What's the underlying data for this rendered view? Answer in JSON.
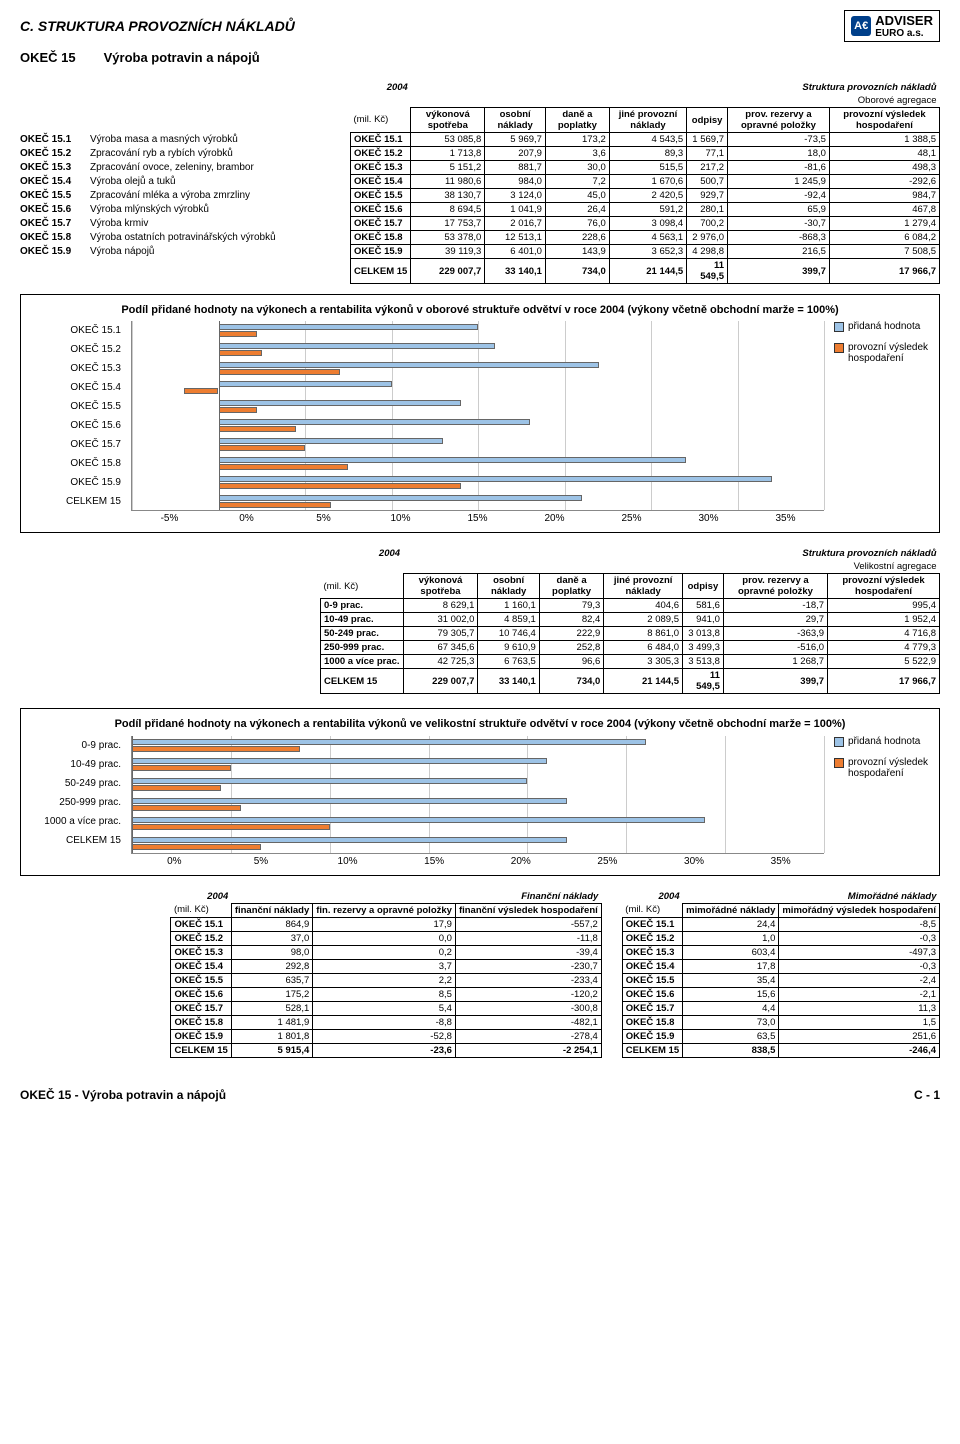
{
  "page": {
    "section_letter_title": "C. STRUKTURA PROVOZNÍCH NÁKLADŮ",
    "logo_text1": "ADVISER",
    "logo_text2": "EURO a.s.",
    "subtitle_code": "OKEČ 15",
    "subtitle_text": "Výroba potravin a nápojů",
    "footer_left": "OKEČ 15 - Výroba potravin a nápojů",
    "footer_right": "C - 1"
  },
  "activities": [
    {
      "code": "OKEČ 15.1",
      "desc": "Výroba masa a masných výrobků"
    },
    {
      "code": "OKEČ 15.2",
      "desc": "Zpracování ryb a rybích výrobků"
    },
    {
      "code": "OKEČ 15.3",
      "desc": "Zpracování ovoce, zeleniny, brambor"
    },
    {
      "code": "OKEČ 15.4",
      "desc": "Výroba olejů a tuků"
    },
    {
      "code": "OKEČ 15.5",
      "desc": "Zpracování mléka a výroba zmrzliny"
    },
    {
      "code": "OKEČ 15.6",
      "desc": "Výroba mlýnských výrobků"
    },
    {
      "code": "OKEČ 15.7",
      "desc": "Výroba krmiv"
    },
    {
      "code": "OKEČ 15.8",
      "desc": "Výroba ostatních potravinářských výrobků"
    },
    {
      "code": "OKEČ 15.9",
      "desc": "Výroba nápojů"
    }
  ],
  "table1": {
    "year": "2004",
    "title": "Struktura provozních nákladů",
    "subtitle": "Oborové agregace",
    "unit": "(mil. Kč)",
    "headers": [
      "výkonová spotřeba",
      "osobní náklady",
      "daně a poplatky",
      "jiné provozní náklady",
      "odpisy",
      "prov. rezervy a opravné položky",
      "provozní výsledek hospodaření"
    ],
    "rows": [
      {
        "label": "OKEČ 15.1",
        "v": [
          "53 085,8",
          "5 969,7",
          "173,2",
          "4 543,5",
          "1 569,7",
          "-73,5",
          "1 388,5"
        ]
      },
      {
        "label": "OKEČ 15.2",
        "v": [
          "1 713,8",
          "207,9",
          "3,6",
          "89,3",
          "77,1",
          "18,0",
          "48,1"
        ]
      },
      {
        "label": "OKEČ 15.3",
        "v": [
          "5 151,2",
          "881,7",
          "30,0",
          "515,5",
          "217,2",
          "-81,6",
          "498,3"
        ]
      },
      {
        "label": "OKEČ 15.4",
        "v": [
          "11 980,6",
          "984,0",
          "7,2",
          "1 670,6",
          "500,7",
          "1 245,9",
          "-292,6"
        ]
      },
      {
        "label": "OKEČ 15.5",
        "v": [
          "38 130,7",
          "3 124,0",
          "45,0",
          "2 420,5",
          "929,7",
          "-92,4",
          "984,7"
        ]
      },
      {
        "label": "OKEČ 15.6",
        "v": [
          "8 694,5",
          "1 041,9",
          "26,4",
          "591,2",
          "280,1",
          "65,9",
          "467,8"
        ]
      },
      {
        "label": "OKEČ 15.7",
        "v": [
          "17 753,7",
          "2 016,7",
          "76,0",
          "3 098,4",
          "700,2",
          "-30,7",
          "1 279,4"
        ]
      },
      {
        "label": "OKEČ 15.8",
        "v": [
          "53 378,0",
          "12 513,1",
          "228,6",
          "4 563,1",
          "2 976,0",
          "-868,3",
          "6 084,2"
        ]
      },
      {
        "label": "OKEČ 15.9",
        "v": [
          "39 119,3",
          "6 401,0",
          "143,9",
          "3 652,3",
          "4 298,8",
          "216,5",
          "7 508,5"
        ]
      },
      {
        "label": "CELKEM 15",
        "v": [
          "229 007,7",
          "33 140,1",
          "734,0",
          "21 144,5",
          "11 549,5",
          "399,7",
          "17 966,7"
        ],
        "total": true
      }
    ]
  },
  "chart1": {
    "title": "Podíl přidané hodnoty na výkonech a rentabilita výkonů v oborové struktuře odvětví v roce 2004\n(výkony včetně obchodní marže = 100%)",
    "type": "bar-horizontal-grouped",
    "x_min": -5,
    "x_max": 35,
    "x_step": 5,
    "x_ticks": [
      "-5%",
      "0%",
      "5%",
      "10%",
      "15%",
      "20%",
      "25%",
      "30%",
      "35%"
    ],
    "colors": {
      "ph": "#9dc3e6",
      "pvh": "#ed7d31",
      "border": "#666"
    },
    "legend": [
      {
        "label": "přidaná hodnota",
        "swatch": "#9dc3e6"
      },
      {
        "label": "provozní výsledek hospodaření",
        "swatch": "#ed7d31"
      }
    ],
    "categories": [
      "OKEČ 15.1",
      "OKEČ 15.2",
      "OKEČ 15.3",
      "OKEČ 15.4",
      "OKEČ 15.5",
      "OKEČ 15.6",
      "OKEČ 15.7",
      "OKEČ 15.8",
      "OKEČ 15.9",
      "CELKEM 15"
    ],
    "series": {
      "ph": [
        15,
        16,
        22,
        10,
        14,
        18,
        13,
        27,
        32,
        21
      ],
      "pvh": [
        2.2,
        2.5,
        7,
        -2,
        2.2,
        4.5,
        5,
        7.5,
        14,
        6.5
      ]
    }
  },
  "table2": {
    "year": "2004",
    "title": "Struktura provozních nákladů",
    "subtitle": "Velikostní agregace",
    "unit": "(mil. Kč)",
    "headers": [
      "výkonová spotřeba",
      "osobní náklady",
      "daně a poplatky",
      "jiné provozní náklady",
      "odpisy",
      "prov. rezervy a opravné položky",
      "provozní výsledek hospodaření"
    ],
    "rows": [
      {
        "label": "0-9 prac.",
        "v": [
          "8 629,1",
          "1 160,1",
          "79,3",
          "404,6",
          "581,6",
          "-18,7",
          "995,4"
        ]
      },
      {
        "label": "10-49 prac.",
        "v": [
          "31 002,0",
          "4 859,1",
          "82,4",
          "2 089,5",
          "941,0",
          "29,7",
          "1 952,4"
        ]
      },
      {
        "label": "50-249 prac.",
        "v": [
          "79 305,7",
          "10 746,4",
          "222,9",
          "8 861,0",
          "3 013,8",
          "-363,9",
          "4 716,8"
        ]
      },
      {
        "label": "250-999 prac.",
        "v": [
          "67 345,6",
          "9 610,9",
          "252,8",
          "6 484,0",
          "3 499,3",
          "-516,0",
          "4 779,3"
        ]
      },
      {
        "label": "1000 a více prac.",
        "v": [
          "42 725,3",
          "6 763,5",
          "96,6",
          "3 305,3",
          "3 513,8",
          "1 268,7",
          "5 522,9"
        ]
      },
      {
        "label": "CELKEM 15",
        "v": [
          "229 007,7",
          "33 140,1",
          "734,0",
          "21 144,5",
          "11 549,5",
          "399,7",
          "17 966,7"
        ],
        "total": true
      }
    ]
  },
  "chart2": {
    "title": "Podíl přidané hodnoty na výkonech a rentabilita výkonů ve velikostní struktuře odvětví v roce 2004\n(výkony včetně obchodní marže = 100%)",
    "type": "bar-horizontal-grouped",
    "x_min": 0,
    "x_max": 35,
    "x_step": 5,
    "x_ticks": [
      "0%",
      "5%",
      "10%",
      "15%",
      "20%",
      "25%",
      "30%",
      "35%"
    ],
    "colors": {
      "ph": "#9dc3e6",
      "pvh": "#ed7d31",
      "border": "#666"
    },
    "legend": [
      {
        "label": "přidaná hodnota",
        "swatch": "#9dc3e6"
      },
      {
        "label": "provozní výsledek hospodaření",
        "swatch": "#ed7d31"
      }
    ],
    "categories": [
      "0-9 prac.",
      "10-49 prac.",
      "50-249 prac.",
      "250-999 prac.",
      "1000 a více prac.",
      "CELKEM 15"
    ],
    "series": {
      "ph": [
        26,
        21,
        20,
        22,
        29,
        22
      ],
      "pvh": [
        8.5,
        5,
        4.5,
        5.5,
        10,
        6.5
      ]
    }
  },
  "table3": {
    "year": "2004",
    "title": "Finanční náklady",
    "unit": "(mil. Kč)",
    "headers": [
      "finanční náklady",
      "fin. rezervy a opravné položky",
      "finanční výsledek hospodaření"
    ],
    "rows": [
      {
        "label": "OKEČ 15.1",
        "v": [
          "864,9",
          "17,9",
          "-557,2"
        ]
      },
      {
        "label": "OKEČ 15.2",
        "v": [
          "37,0",
          "0,0",
          "-11,8"
        ]
      },
      {
        "label": "OKEČ 15.3",
        "v": [
          "98,0",
          "0,2",
          "-39,4"
        ]
      },
      {
        "label": "OKEČ 15.4",
        "v": [
          "292,8",
          "3,7",
          "-230,7"
        ]
      },
      {
        "label": "OKEČ 15.5",
        "v": [
          "635,7",
          "2,2",
          "-233,4"
        ]
      },
      {
        "label": "OKEČ 15.6",
        "v": [
          "175,2",
          "8,5",
          "-120,2"
        ]
      },
      {
        "label": "OKEČ 15.7",
        "v": [
          "528,1",
          "5,4",
          "-300,8"
        ]
      },
      {
        "label": "OKEČ 15.8",
        "v": [
          "1 481,9",
          "-8,8",
          "-482,1"
        ]
      },
      {
        "label": "OKEČ 15.9",
        "v": [
          "1 801,8",
          "-52,8",
          "-278,4"
        ]
      },
      {
        "label": "CELKEM 15",
        "v": [
          "5 915,4",
          "-23,6",
          "-2 254,1"
        ],
        "total": true
      }
    ]
  },
  "table4": {
    "year": "2004",
    "title": "Mimořádné náklady",
    "unit": "(mil. Kč)",
    "headers": [
      "mimořádné náklady",
      "mimořádný výsledek hospodaření"
    ],
    "rows": [
      {
        "label": "OKEČ 15.1",
        "v": [
          "24,4",
          "-8,5"
        ]
      },
      {
        "label": "OKEČ 15.2",
        "v": [
          "1,0",
          "-0,3"
        ]
      },
      {
        "label": "OKEČ 15.3",
        "v": [
          "603,4",
          "-497,3"
        ]
      },
      {
        "label": "OKEČ 15.4",
        "v": [
          "17,8",
          "-0,3"
        ]
      },
      {
        "label": "OKEČ 15.5",
        "v": [
          "35,4",
          "-2,4"
        ]
      },
      {
        "label": "OKEČ 15.6",
        "v": [
          "15,6",
          "-2,1"
        ]
      },
      {
        "label": "OKEČ 15.7",
        "v": [
          "4,4",
          "11,3"
        ]
      },
      {
        "label": "OKEČ 15.8",
        "v": [
          "73,0",
          "1,5"
        ]
      },
      {
        "label": "OKEČ 15.9",
        "v": [
          "63,5",
          "251,6"
        ]
      },
      {
        "label": "CELKEM 15",
        "v": [
          "838,5",
          "-246,4"
        ],
        "total": true
      }
    ]
  }
}
